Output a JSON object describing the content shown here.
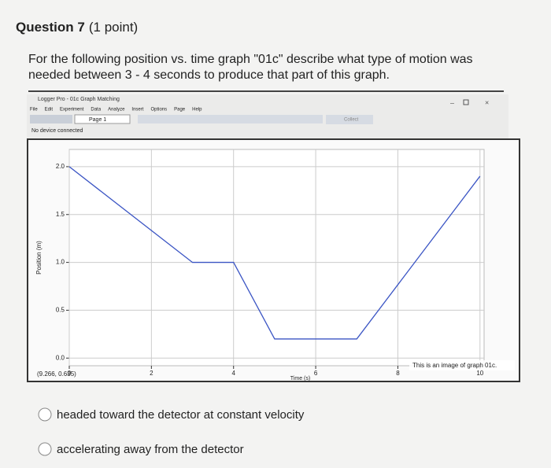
{
  "question": {
    "title": "Question 7",
    "points": "(1 point)",
    "prompt_line1": "For the following position vs. time graph \"01c\" describe what type of motion was",
    "prompt_line2": "needed between 3 - 4 seconds to produce that part of this graph."
  },
  "window": {
    "title": "Logger Pro - 01c Graph Matching",
    "menu": [
      "File",
      "Edit",
      "Experiment",
      "Data",
      "Analyze",
      "Insert",
      "Options",
      "Page",
      "Help"
    ],
    "page": "Page 1",
    "status": "No device connected",
    "collect": "Collect"
  },
  "chart_data": {
    "type": "line",
    "x_label": "Time (s)",
    "y_label": "Position (m)",
    "x": [
      0,
      3,
      4,
      5,
      7,
      10
    ],
    "values": [
      2.0,
      1.0,
      1.0,
      0.2,
      0.2,
      1.9
    ],
    "color": "#3b55c4",
    "xlim": [
      0,
      10.1
    ],
    "ylim": [
      -0.08,
      2.18
    ],
    "xticks": [
      0,
      2,
      4,
      6,
      8,
      10
    ],
    "yticks": [
      {
        "value": 0,
        "label": "0.0"
      },
      0.5,
      {
        "value": 1,
        "label": "1.0"
      },
      1.5,
      {
        "value": 2,
        "label": "2.0"
      }
    ],
    "grid": true,
    "annotations": [
      "(9.266, 0.635)",
      "This is an image of graph 01c."
    ]
  },
  "options": [
    "headed toward the detector at constant velocity",
    "accelerating away from the detector"
  ]
}
